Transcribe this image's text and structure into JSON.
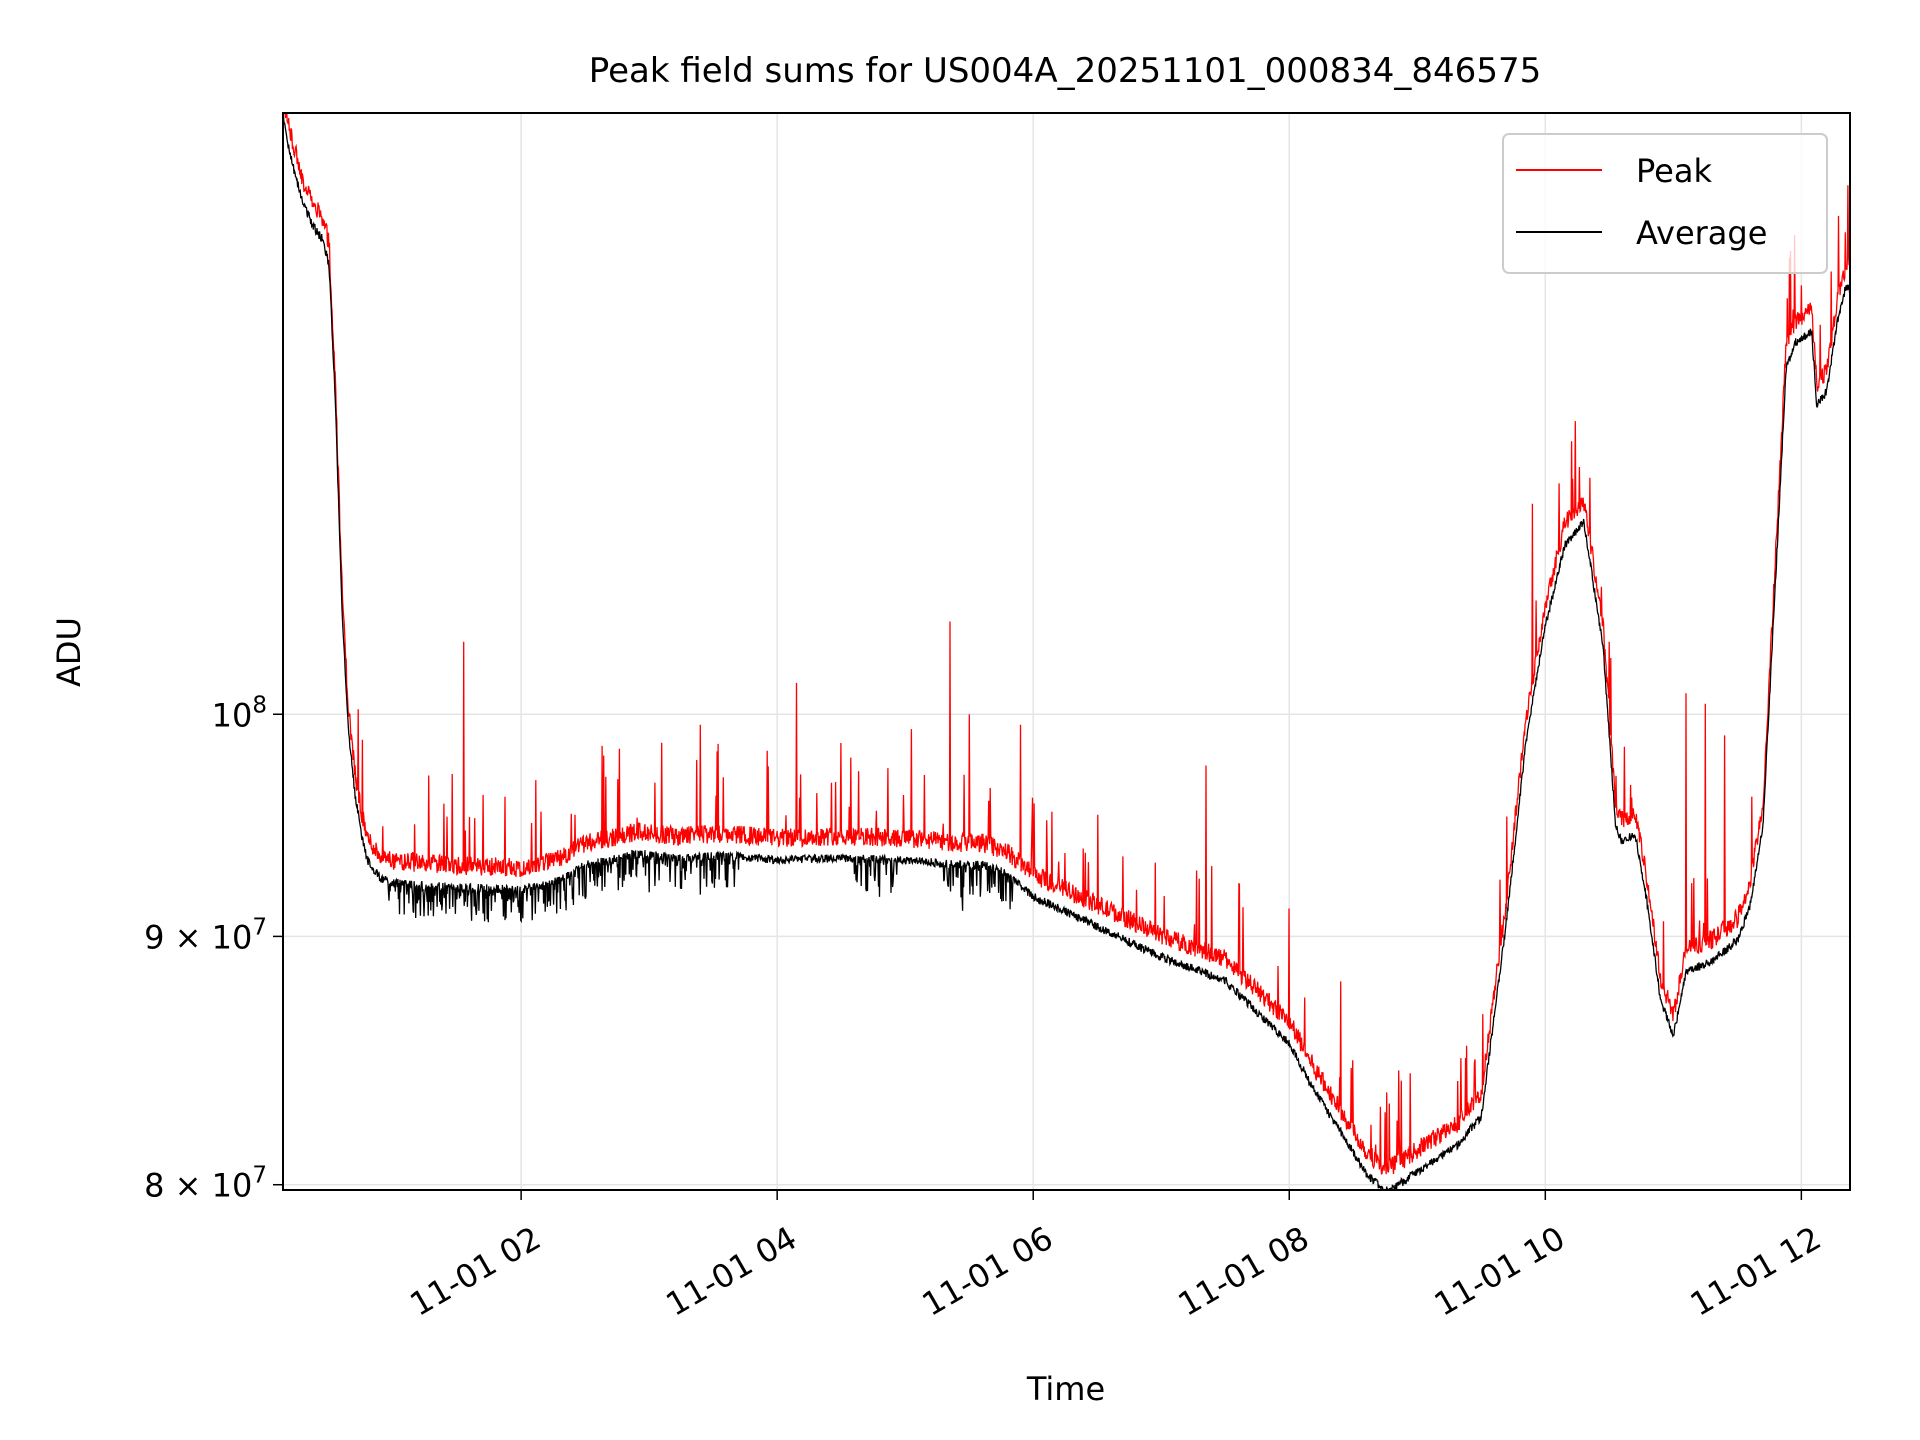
{
  "chart_data": {
    "type": "line",
    "title": "Peak field sums for US004A_20251101_000834_846575",
    "xlabel": "Time",
    "ylabel": "ADU",
    "yscale": "log",
    "xlim": [
      0.14,
      12.38
    ],
    "ylim": [
      79800000,
      133000000
    ],
    "x_ticks": [
      {
        "value": 2,
        "label": "11-01 02"
      },
      {
        "value": 4,
        "label": "11-01 04"
      },
      {
        "value": 6,
        "label": "11-01 06"
      },
      {
        "value": 8,
        "label": "11-01 08"
      },
      {
        "value": 10,
        "label": "11-01 10"
      },
      {
        "value": 12,
        "label": "11-01 12"
      }
    ],
    "y_ticks": [
      {
        "value": 100000000,
        "base": "10",
        "exp": "8",
        "mant": ""
      },
      {
        "value": 90000000,
        "base": "10",
        "exp": "7",
        "mant": "9 × "
      },
      {
        "value": 80000000,
        "base": "10",
        "exp": "7",
        "mant": "8 × "
      }
    ],
    "grid": true,
    "legend": {
      "position": "top-right"
    },
    "series": [
      {
        "name": "Peak",
        "color": "#ff0000"
      },
      {
        "name": "Average",
        "color": "#000000"
      }
    ],
    "average_trend": [
      [
        0.14,
        133000000
      ],
      [
        0.2,
        130500000
      ],
      [
        0.25,
        129000000
      ],
      [
        0.3,
        127600000
      ],
      [
        0.36,
        126600000
      ],
      [
        0.4,
        126000000
      ],
      [
        0.45,
        125500000
      ],
      [
        0.5,
        124000000
      ],
      [
        0.55,
        116000000
      ],
      [
        0.6,
        105500000
      ],
      [
        0.65,
        99500000
      ],
      [
        0.7,
        96600000
      ],
      [
        0.75,
        94700000
      ],
      [
        0.8,
        93500000
      ],
      [
        0.9,
        92700000
      ],
      [
        1.0,
        92500000
      ],
      [
        1.5,
        92300000
      ],
      [
        2.0,
        92200000
      ],
      [
        2.3,
        92600000
      ],
      [
        2.5,
        93300000
      ],
      [
        2.7,
        93500000
      ],
      [
        2.9,
        93800000
      ],
      [
        3.2,
        93600000
      ],
      [
        3.6,
        93700000
      ],
      [
        4.0,
        93500000
      ],
      [
        4.5,
        93600000
      ],
      [
        5.0,
        93500000
      ],
      [
        5.4,
        93300000
      ],
      [
        5.6,
        93300000
      ],
      [
        5.8,
        92900000
      ],
      [
        6.0,
        91900000
      ],
      [
        6.5,
        90600000
      ],
      [
        7.0,
        89300000
      ],
      [
        7.5,
        88300000
      ],
      [
        8.0,
        85700000
      ],
      [
        8.2,
        83800000
      ],
      [
        8.45,
        81800000
      ],
      [
        8.6,
        80600000
      ],
      [
        8.75,
        79900000
      ],
      [
        8.9,
        80300000
      ],
      [
        9.1,
        81000000
      ],
      [
        9.3,
        81600000
      ],
      [
        9.5,
        82800000
      ],
      [
        9.7,
        91000000
      ],
      [
        9.85,
        99000000
      ],
      [
        10.0,
        104500000
      ],
      [
        10.15,
        108500000
      ],
      [
        10.3,
        109800000
      ],
      [
        10.45,
        103500000
      ],
      [
        10.55,
        95000000
      ],
      [
        10.6,
        94300000
      ],
      [
        10.7,
        94700000
      ],
      [
        10.8,
        91500000
      ],
      [
        10.9,
        87500000
      ],
      [
        11.0,
        86000000
      ],
      [
        11.1,
        88700000
      ],
      [
        11.3,
        89100000
      ],
      [
        11.5,
        90000000
      ],
      [
        11.6,
        91500000
      ],
      [
        11.7,
        95000000
      ],
      [
        11.8,
        107000000
      ],
      [
        11.88,
        118000000
      ],
      [
        11.95,
        119500000
      ],
      [
        12.05,
        120000000
      ],
      [
        12.08,
        120200000
      ],
      [
        12.12,
        116000000
      ],
      [
        12.2,
        116800000
      ],
      [
        12.28,
        120700000
      ],
      [
        12.35,
        122800000
      ],
      [
        12.38,
        122500000
      ]
    ],
    "peak_spikes": [
      [
        1.55,
        103500000
      ],
      [
        3.4,
        99500000
      ],
      [
        4.15,
        101500000
      ],
      [
        5.05,
        99300000
      ],
      [
        5.35,
        104500000
      ],
      [
        5.5,
        100000000
      ],
      [
        5.9,
        99500000
      ],
      [
        7.35,
        97600000
      ],
      [
        8.0,
        91200000
      ],
      [
        8.4,
        88100000
      ],
      [
        8.75,
        82800000
      ],
      [
        9.9,
        110500000
      ],
      [
        10.5,
        103500000
      ],
      [
        11.1,
        101000000
      ],
      [
        11.25,
        100500000
      ],
      [
        11.4,
        99000000
      ],
      [
        11.8,
        108500000
      ]
    ],
    "average_dips": [
      [
        1.25,
        92000000
      ],
      [
        1.55,
        92000000
      ],
      [
        1.85,
        91600000
      ],
      [
        2.4,
        91600000
      ],
      [
        3.0,
        91900000
      ],
      [
        3.4,
        91800000
      ],
      [
        4.8,
        91700000
      ],
      [
        5.45,
        91100000
      ],
      [
        5.65,
        92300000
      ],
      [
        5.75,
        93000000
      ]
    ]
  }
}
